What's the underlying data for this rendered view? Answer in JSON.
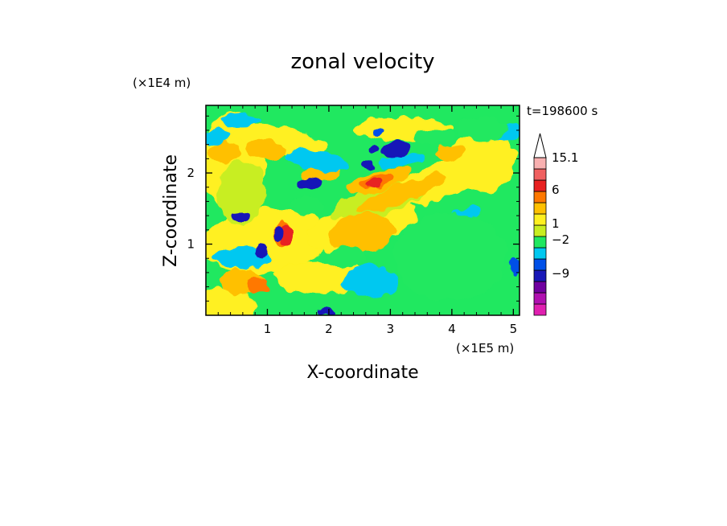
{
  "chart_data": {
    "type": "heatmap",
    "title": "zonal velocity",
    "xlabel": "X-coordinate",
    "ylabel": "Z-coordinate",
    "x_unit": "(×1E5 m)",
    "y_unit": "(×1E4 m)",
    "time_label": "t=198600 s",
    "xlim": [
      0.0,
      5.1
    ],
    "ylim": [
      0.0,
      2.95
    ],
    "x_ticks": [
      {
        "value": 1,
        "label": "1"
      },
      {
        "value": 2,
        "label": "2"
      },
      {
        "value": 3,
        "label": "3"
      },
      {
        "value": 4,
        "label": "4"
      },
      {
        "value": 5,
        "label": "5"
      }
    ],
    "y_ticks": [
      {
        "value": 1,
        "label": "1"
      },
      {
        "value": 2,
        "label": "2"
      }
    ],
    "colorbar": {
      "levels_bottom_to_top": [
        {
          "color": "#e020b0"
        },
        {
          "color": "#b010b0"
        },
        {
          "color": "#7000a0"
        },
        {
          "color": "#1818b8"
        },
        {
          "color": "#0050e8"
        },
        {
          "color": "#00c8f0"
        },
        {
          "color": "#20e860"
        },
        {
          "color": "#c8ee20"
        },
        {
          "color": "#fff020"
        },
        {
          "color": "#ffc000"
        },
        {
          "color": "#ff7800"
        },
        {
          "color": "#e82020"
        },
        {
          "color": "#f06060"
        },
        {
          "color": "#f8b0b0"
        }
      ],
      "labels": [
        {
          "value": "15.1",
          "label": "15.1"
        },
        {
          "value": "6",
          "label": "6"
        },
        {
          "value": "1",
          "label": "1"
        },
        {
          "value": "-2",
          "label": "−2"
        },
        {
          "value": "-9",
          "label": "−9"
        }
      ],
      "has_top_arrow": true
    }
  }
}
